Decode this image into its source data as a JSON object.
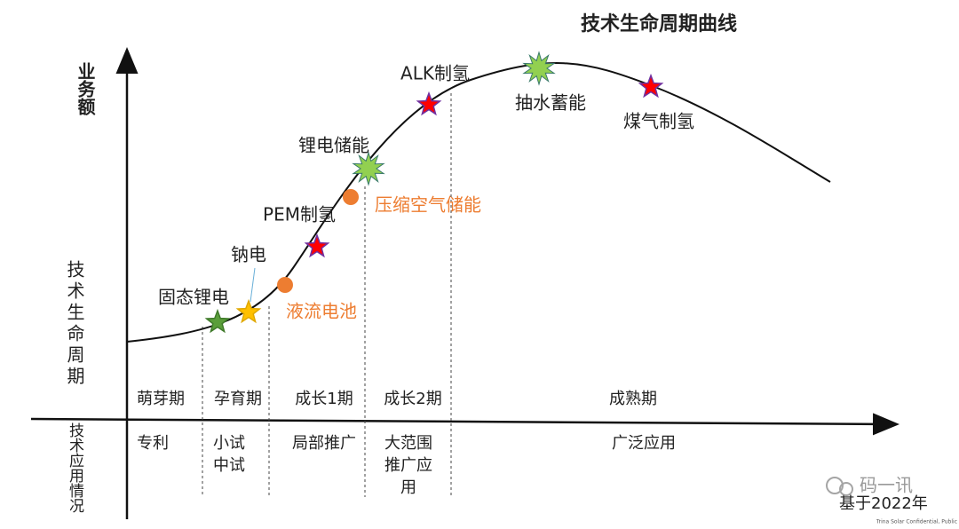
{
  "title": "技术生命周期曲线",
  "y_axis_label": "业务额",
  "left_labels": {
    "lifecycle": "技术生命周期",
    "application": "技术应用情况"
  },
  "stages": [
    "萌芽期",
    "孕育期",
    "成长1期",
    "成长2期",
    "成熟期"
  ],
  "applications": [
    [
      "专利"
    ],
    [
      "小试",
      "中试"
    ],
    [
      "局部推广"
    ],
    [
      "大范围",
      "推广应",
      "用"
    ],
    [
      "广泛应用"
    ]
  ],
  "technologies": [
    "固态锂电",
    "钠电",
    "液流电池",
    "PEM制氢",
    "压缩空气储能",
    "锂电储能",
    "ALK制氢",
    "抽水蓄能",
    "煤气制氢"
  ],
  "footer": "基于2022年",
  "watermark": "码一讯",
  "confidential": "Trina Solar Confidential, Public"
}
